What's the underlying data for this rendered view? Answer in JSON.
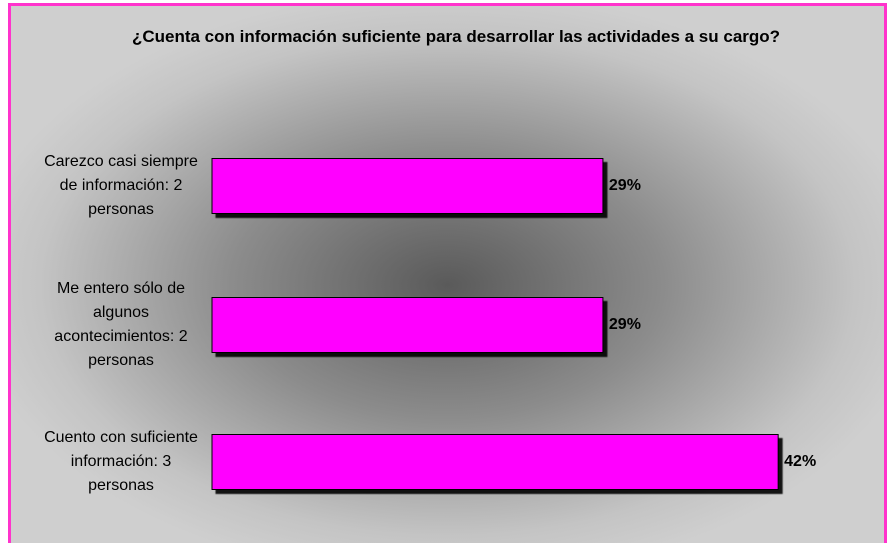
{
  "chart_data": {
    "type": "barh",
    "title": "¿Cuenta con información suficiente para desarrollar las actividades a su cargo?",
    "categories": [
      "Carezco casi siempre de información: 2 personas",
      "Me entero sólo de algunos acontecimientos: 2 personas",
      "Cuento con suficiente información: 3 personas"
    ],
    "values": [
      29,
      29,
      42
    ],
    "value_labels": [
      "29%",
      "29%",
      "42%"
    ],
    "color": "#ff00ff"
  }
}
